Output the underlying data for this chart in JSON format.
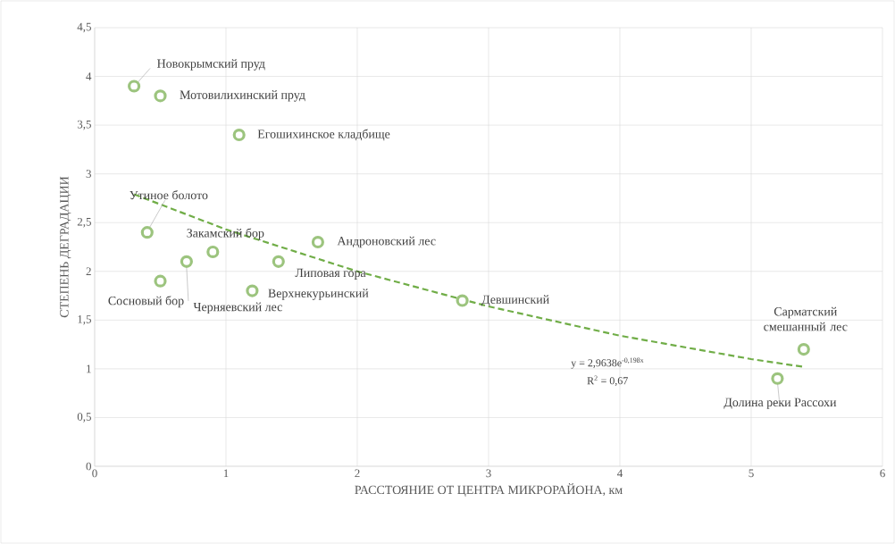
{
  "chart_data": {
    "type": "scatter",
    "xlabel": "РАССТОЯНИЕ ОТ ЦЕНТРА МИКРОРАЙОНА, км",
    "ylabel": "СТЕПЕНЬ ДЕГРАДАЦИИ",
    "xlim": [
      0,
      6
    ],
    "ylim": [
      0,
      4.5
    ],
    "xticks": [
      0,
      1,
      2,
      3,
      4,
      5,
      6
    ],
    "yticks": [
      0,
      {
        "value": 0.5,
        "label": "0,5"
      },
      1,
      {
        "value": 1.5,
        "label": "1,5"
      },
      2,
      {
        "value": 2.5,
        "label": "2,5"
      },
      3,
      {
        "value": 3.5,
        "label": "3,5"
      },
      4,
      {
        "value": 4.5,
        "label": "4,5"
      }
    ],
    "grid": true,
    "series": [
      {
        "color": "#9cc47e",
        "marker": "circle",
        "x": [
          0.3,
          0.5,
          1.1,
          0.4,
          0.9,
          1.7,
          1.4,
          0.7,
          0.5,
          1.2,
          2.8,
          5.4,
          5.2
        ],
        "values": [
          3.9,
          3.8,
          3.4,
          2.4,
          2.2,
          2.3,
          2.1,
          2.1,
          1.9,
          1.8,
          1.7,
          1.2,
          0.9
        ]
      },
      {
        "type": "line",
        "color": "#70ad47",
        "line_style": "dashed",
        "marker": "none",
        "x": [
          0.3,
          1,
          2,
          3,
          4,
          5,
          5.4
        ],
        "values": [
          2.79,
          2.43,
          2.0,
          1.64,
          1.34,
          1.1,
          1.02
        ]
      }
    ],
    "annotations": [
      {
        "text": "Новокрымский пруд",
        "x": 0.3,
        "y": 3.9
      },
      {
        "text": "Мотовилихинский пруд",
        "x": 0.5,
        "y": 3.8
      },
      {
        "text": "Егошихинское кладбище",
        "x": 1.1,
        "y": 3.4
      },
      {
        "text": "Утиное болото",
        "x": 0.4,
        "y": 2.4
      },
      {
        "text": "Закамский бор",
        "x": 0.9,
        "y": 2.2
      },
      {
        "text": "Андроновский лес",
        "x": 1.7,
        "y": 2.3
      },
      {
        "text": "Липовая гора",
        "x": 1.4,
        "y": 2.1
      },
      {
        "text": "Черняевский лес",
        "x": 0.7,
        "y": 2.1
      },
      {
        "text": "Сосновый бор",
        "x": 0.5,
        "y": 1.9
      },
      {
        "text": "Верхнекурьинский",
        "x": 1.2,
        "y": 1.8
      },
      {
        "text": "Девшинский",
        "x": 2.8,
        "y": 1.7
      },
      {
        "text": "Сарматский смешанный лес",
        "x": 5.4,
        "y": 1.2
      },
      {
        "text": "Долина реки Рассохи",
        "x": 5.2,
        "y": 0.9
      },
      "y = 2,9638e$^{-0,198x}$",
      "R$^{2}$ = 0,67"
    ]
  }
}
